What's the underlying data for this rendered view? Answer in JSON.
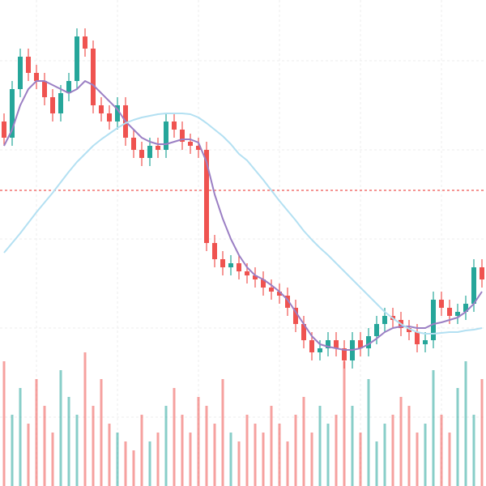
{
  "chart_data": {
    "type": "candlestick",
    "ylim": [
      0,
      600
    ],
    "volume_ylim": [
      0,
      100
    ],
    "up_color": "#26a69a",
    "down_color": "#ef5350",
    "reference_line": {
      "value": 365,
      "color": "#ef5350"
    },
    "open": [
      450,
      430,
      490,
      530,
      510,
      500,
      480,
      460,
      485,
      500,
      555,
      540,
      470,
      460,
      450,
      470,
      430,
      415,
      405,
      420,
      415,
      450,
      440,
      425,
      420,
      415,
      300,
      280,
      270,
      275,
      265,
      260,
      255,
      245,
      240,
      235,
      220,
      200,
      180,
      165,
      170,
      180,
      170,
      155,
      180,
      170,
      185,
      200,
      210,
      205,
      195,
      190,
      175,
      180,
      230,
      220,
      210,
      215,
      225,
      270
    ],
    "high": [
      460,
      500,
      540,
      540,
      520,
      510,
      490,
      495,
      510,
      565,
      565,
      550,
      480,
      470,
      480,
      480,
      440,
      425,
      430,
      430,
      460,
      460,
      450,
      435,
      430,
      425,
      310,
      290,
      285,
      285,
      275,
      270,
      265,
      255,
      250,
      245,
      230,
      210,
      190,
      180,
      190,
      190,
      180,
      190,
      190,
      195,
      210,
      220,
      220,
      215,
      205,
      200,
      190,
      240,
      240,
      230,
      225,
      235,
      280,
      280
    ],
    "low": [
      420,
      420,
      480,
      500,
      490,
      470,
      450,
      450,
      475,
      490,
      530,
      460,
      450,
      440,
      440,
      420,
      405,
      395,
      395,
      405,
      405,
      430,
      415,
      410,
      405,
      290,
      270,
      260,
      260,
      255,
      250,
      245,
      235,
      230,
      225,
      210,
      190,
      170,
      155,
      155,
      160,
      160,
      145,
      145,
      160,
      160,
      175,
      190,
      195,
      185,
      180,
      165,
      165,
      170,
      210,
      200,
      200,
      205,
      215,
      245
    ],
    "close": [
      430,
      490,
      530,
      510,
      500,
      480,
      460,
      485,
      500,
      555,
      540,
      470,
      460,
      450,
      470,
      430,
      415,
      405,
      420,
      415,
      450,
      440,
      425,
      420,
      415,
      300,
      280,
      270,
      275,
      265,
      260,
      255,
      245,
      240,
      235,
      220,
      200,
      180,
      165,
      170,
      180,
      170,
      155,
      180,
      170,
      185,
      200,
      210,
      205,
      195,
      190,
      175,
      180,
      230,
      220,
      210,
      215,
      225,
      270,
      255
    ],
    "volume": [
      70,
      40,
      55,
      35,
      60,
      45,
      30,
      65,
      50,
      40,
      75,
      45,
      60,
      35,
      30,
      25,
      20,
      40,
      25,
      30,
      45,
      55,
      40,
      30,
      50,
      45,
      35,
      60,
      30,
      25,
      40,
      35,
      30,
      45,
      35,
      25,
      40,
      50,
      30,
      45,
      35,
      40,
      70,
      45,
      30,
      60,
      25,
      35,
      40,
      50,
      45,
      30,
      35,
      65,
      40,
      30,
      55,
      70,
      40,
      60
    ],
    "series": [
      {
        "color": "#9b7fc4",
        "values": [
          420,
          440,
          470,
          490,
          500,
          500,
          495,
          490,
          485,
          490,
          500,
          495,
          485,
          475,
          465,
          450,
          440,
          430,
          425,
          422,
          422,
          425,
          428,
          428,
          424,
          400,
          360,
          330,
          305,
          285,
          270,
          260,
          255,
          248,
          240,
          230,
          215,
          200,
          185,
          175,
          172,
          170,
          168,
          168,
          170,
          175,
          182,
          190,
          195,
          197,
          197,
          195,
          195,
          200,
          202,
          205,
          208,
          215,
          225,
          240
        ]
      },
      {
        "color": "#b3e0f2",
        "values": [
          288,
          300,
          312,
          325,
          338,
          350,
          362,
          375,
          388,
          400,
          410,
          420,
          428,
          435,
          442,
          448,
          452,
          455,
          457,
          459,
          460,
          460,
          460,
          459,
          455,
          448,
          440,
          432,
          422,
          410,
          402,
          390,
          378,
          365,
          352,
          340,
          328,
          315,
          304,
          294,
          285,
          275,
          265,
          255,
          245,
          235,
          225,
          215,
          207,
          200,
          194,
          190,
          188,
          188,
          189,
          190,
          190,
          192,
          193,
          195
        ]
      }
    ]
  }
}
